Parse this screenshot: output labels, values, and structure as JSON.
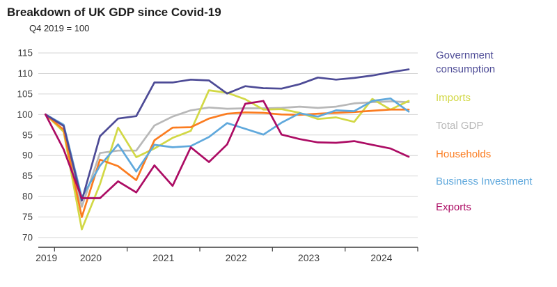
{
  "header": {
    "title": "Breakdown of UK GDP since Covid-19",
    "subtitle": "Q4 2019 = 100"
  },
  "chart_data": {
    "type": "line",
    "title": "Breakdown of UK GDP since Covid-19",
    "subtitle": "Q4 2019 = 100",
    "x_quarters": [
      "2019 Q4",
      "2020 Q1",
      "2020 Q2",
      "2020 Q3",
      "2020 Q4",
      "2021 Q1",
      "2021 Q2",
      "2021 Q3",
      "2021 Q4",
      "2022 Q1",
      "2022 Q2",
      "2022 Q3",
      "2022 Q4",
      "2023 Q1",
      "2023 Q2",
      "2023 Q3",
      "2023 Q4",
      "2024 Q1",
      "2024 Q2",
      "2024 Q3",
      "2024 Q4"
    ],
    "x_axis_year_labels": [
      "2019",
      "2020",
      "2021",
      "2022",
      "2023",
      "2024"
    ],
    "y_ticks": [
      115,
      110,
      105,
      100,
      95,
      90,
      85,
      80,
      75,
      70
    ],
    "ylim": [
      70,
      115
    ],
    "grid": true,
    "legend_position": "right",
    "draw_order": [
      2,
      1,
      3,
      4,
      0,
      5
    ],
    "series": [
      {
        "name": "Government consumption",
        "color": "#4d4b96",
        "values": [
          100,
          97.2,
          79.0,
          94.7,
          99.0,
          99.6,
          107.8,
          107.8,
          108.5,
          108.3,
          105.1,
          106.9,
          106.4,
          106.3,
          107.4,
          109.0,
          108.5,
          108.9,
          109.5,
          110.3,
          111.0
        ]
      },
      {
        "name": "Imports",
        "color": "#d2d845",
        "values": [
          100,
          95.8,
          72.0,
          83.0,
          96.8,
          89.6,
          91.7,
          94.3,
          96.0,
          105.9,
          105.3,
          103.7,
          101.2,
          101.3,
          100.4,
          98.9,
          99.3,
          98.2,
          103.8,
          101.2,
          103.3
        ]
      },
      {
        "name": "Total GDP",
        "color": "#b8b8b8",
        "values": [
          100,
          97.3,
          77.5,
          90.6,
          91.2,
          91.2,
          97.3,
          99.5,
          101.0,
          101.7,
          101.4,
          101.5,
          101.5,
          101.6,
          101.9,
          101.6,
          101.9,
          102.7,
          103.0,
          103.2,
          103.0
        ]
      },
      {
        "name": "Households",
        "color": "#fb7c20",
        "values": [
          100,
          96.3,
          75.0,
          89.0,
          87.4,
          84.0,
          93.7,
          96.8,
          96.9,
          99.0,
          100.2,
          100.5,
          100.4,
          100.0,
          99.9,
          100.2,
          100.4,
          100.6,
          100.9,
          101.2,
          101.2
        ]
      },
      {
        "name": "Business Investment",
        "color": "#5fa8dc",
        "values": [
          100,
          97.5,
          79.8,
          87.5,
          92.7,
          86.1,
          92.6,
          92.0,
          92.3,
          94.5,
          97.9,
          96.5,
          95.1,
          98.0,
          100.3,
          99.5,
          101.0,
          100.8,
          103.3,
          103.9,
          100.7
        ]
      },
      {
        "name": "Exports",
        "color": "#ac0c64",
        "values": [
          100,
          91.5,
          79.6,
          79.6,
          83.7,
          81.0,
          87.6,
          82.6,
          92.0,
          88.4,
          92.7,
          102.6,
          103.3,
          95.1,
          94.0,
          93.2,
          93.1,
          93.5,
          92.6,
          91.7,
          89.7
        ]
      }
    ]
  },
  "legend": {
    "items": [
      "Government consumption",
      "Imports",
      "Total GDP",
      "Households",
      "Business Investment",
      "Exports"
    ]
  },
  "style_colors": {
    "grid": "#d6d6d6",
    "axis": "#3c3c3c",
    "tick_label": "#3d3d3d",
    "title_text": "#1c1c1c"
  }
}
